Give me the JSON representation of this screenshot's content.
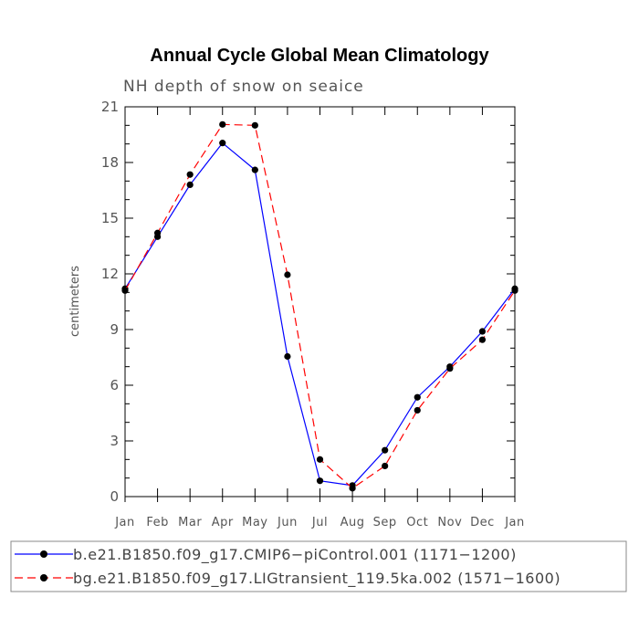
{
  "chart_data": {
    "type": "line",
    "title": "Annual Cycle Global Mean Climatology",
    "subtitle": "NH depth of snow on seaice",
    "ylabel": "centimeters",
    "xlabel": "",
    "categories": [
      "Jan",
      "Feb",
      "Mar",
      "Apr",
      "May",
      "Jun",
      "Jul",
      "Aug",
      "Sep",
      "Oct",
      "Nov",
      "Dec",
      "Jan"
    ],
    "ylim": [
      0,
      21
    ],
    "yticks": [
      "0",
      "3",
      "6",
      "9",
      "12",
      "15",
      "18",
      "21"
    ],
    "series": [
      {
        "name": "b.e21.B1850.f09_g17.CMIP6−piControl.001 (1171−1200)",
        "color": "#0000ff",
        "dash": "solid",
        "values": [
          11.2,
          14.0,
          16.8,
          19.05,
          17.6,
          7.55,
          0.85,
          0.6,
          2.5,
          5.35,
          7.0,
          8.9,
          11.2
        ]
      },
      {
        "name": "bg.e21.B1850.f09_g17.LIGtransient_119.5ka.002 (1571−1600)",
        "color": "#ff0000",
        "dash": "dashed",
        "values": [
          11.1,
          14.2,
          17.35,
          20.05,
          20.0,
          11.95,
          2.0,
          0.45,
          1.65,
          4.65,
          6.9,
          8.45,
          11.1
        ]
      }
    ],
    "grid": false,
    "legend_placement": "bottom"
  }
}
